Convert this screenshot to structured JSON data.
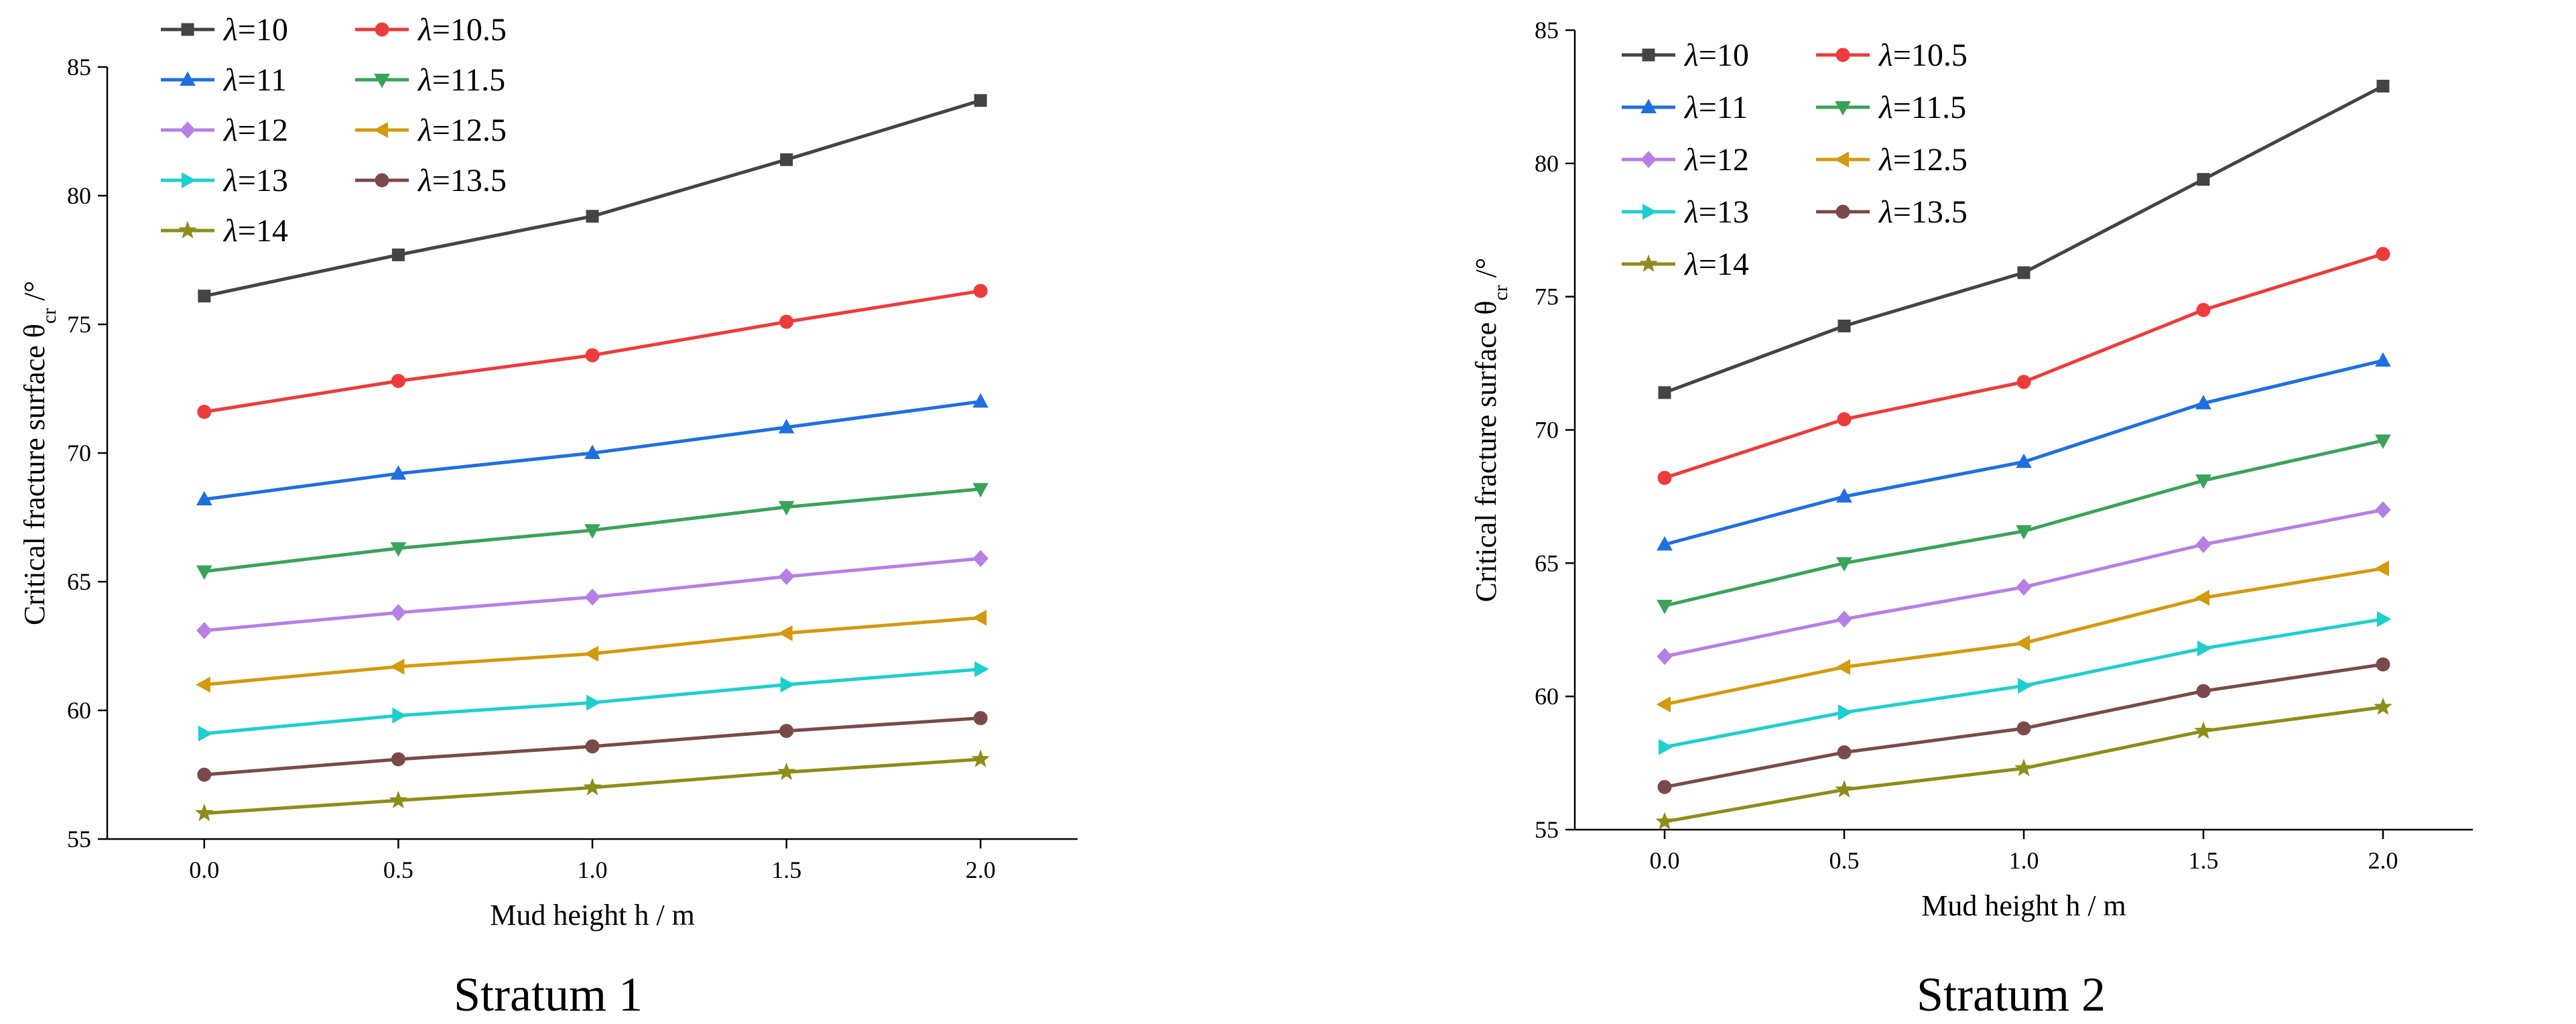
{
  "colors": {
    "lambda_10": "#444444",
    "lambda_10_5": "#ee3b3b",
    "lambda_11": "#1f6fe0",
    "lambda_11_5": "#3aa35a",
    "lambda_12": "#b77fe6",
    "lambda_12_5": "#d49a0d",
    "lambda_13": "#1ecfcf",
    "lambda_13_5": "#7a4a48",
    "lambda_14": "#8d8d1a"
  },
  "chart_data": [
    {
      "type": "line",
      "caption": "Stratum 1",
      "xlabel": "Mud height h / m",
      "ylabel": "Critical fracture surface θcr /°",
      "ylabel_main": "Critical fracture surface θ",
      "ylabel_sub": "cr",
      "ylabel_unit": " /°",
      "xlim": [
        -0.25,
        2.25
      ],
      "ylim": [
        55,
        85
      ],
      "x": [
        0.0,
        0.5,
        1.0,
        1.5,
        2.0
      ],
      "x_tick_labels": [
        "0.0",
        "0.5",
        "1.0",
        "1.5",
        "2.0"
      ],
      "y_ticks": [
        55,
        60,
        65,
        70,
        75,
        80,
        85
      ],
      "y_tick_labels": [
        "55",
        "60",
        "65",
        "70",
        "75",
        "80",
        "85"
      ],
      "series": [
        {
          "name": "λ=10",
          "lambda_symbol": "λ",
          "lambda_value": "=10",
          "marker": "square",
          "color_key": "lambda_10",
          "values": [
            76.1,
            77.7,
            79.2,
            81.4,
            83.7
          ]
        },
        {
          "name": "λ=10.5",
          "lambda_symbol": "λ",
          "lambda_value": "=10.5",
          "marker": "circle",
          "color_key": "lambda_10_5",
          "values": [
            71.6,
            72.8,
            73.8,
            75.1,
            76.3
          ]
        },
        {
          "name": "λ=11",
          "lambda_symbol": "λ",
          "lambda_value": "=11",
          "marker": "triangle-up",
          "color_key": "lambda_11",
          "values": [
            68.2,
            69.2,
            70.0,
            71.0,
            72.0
          ]
        },
        {
          "name": "λ=11.5",
          "lambda_symbol": "λ",
          "lambda_value": "=11.5",
          "marker": "triangle-down",
          "color_key": "lambda_11_5",
          "values": [
            65.4,
            66.3,
            67.0,
            67.9,
            68.6
          ]
        },
        {
          "name": "λ=12",
          "lambda_symbol": "λ",
          "lambda_value": "=12",
          "marker": "diamond",
          "color_key": "lambda_12",
          "values": [
            63.1,
            63.8,
            64.4,
            65.2,
            65.9
          ]
        },
        {
          "name": "λ=12.5",
          "lambda_symbol": "λ",
          "lambda_value": "=12.5",
          "marker": "triangle-left",
          "color_key": "lambda_12_5",
          "values": [
            61.0,
            61.7,
            62.2,
            63.0,
            63.6
          ]
        },
        {
          "name": "λ=13",
          "lambda_symbol": "λ",
          "lambda_value": "=13",
          "marker": "triangle-right",
          "color_key": "lambda_13",
          "values": [
            59.1,
            59.8,
            60.3,
            61.0,
            61.6
          ]
        },
        {
          "name": "λ=13.5",
          "lambda_symbol": "λ",
          "lambda_value": "=13.5",
          "marker": "circle",
          "color_key": "lambda_13_5",
          "values": [
            57.5,
            58.1,
            58.6,
            59.2,
            59.7
          ]
        },
        {
          "name": "λ=14",
          "lambda_symbol": "λ",
          "lambda_value": "=14",
          "marker": "star",
          "color_key": "lambda_14",
          "values": [
            56.0,
            56.5,
            57.0,
            57.6,
            58.1
          ]
        }
      ]
    },
    {
      "type": "line",
      "caption": "Stratum 2",
      "xlabel": "Mud height h / m",
      "ylabel": "Critical fracture surface θcr /°",
      "ylabel_main": "Critical fracture surface θ",
      "ylabel_sub": "cr",
      "ylabel_unit": " /°",
      "xlim": [
        -0.25,
        2.25
      ],
      "ylim": [
        55,
        85
      ],
      "x": [
        0.0,
        0.5,
        1.0,
        1.5,
        2.0
      ],
      "x_tick_labels": [
        "0.0",
        "0.5",
        "1.0",
        "1.5",
        "2.0"
      ],
      "y_ticks": [
        55,
        60,
        65,
        70,
        75,
        80,
        85
      ],
      "y_tick_labels": [
        "55",
        "60",
        "65",
        "70",
        "75",
        "80",
        "85"
      ],
      "series": [
        {
          "name": "λ=10",
          "lambda_symbol": "λ",
          "lambda_value": "=10",
          "marker": "square",
          "color_key": "lambda_10",
          "values": [
            71.4,
            73.9,
            75.9,
            79.4,
            82.9
          ]
        },
        {
          "name": "λ=10.5",
          "lambda_symbol": "λ",
          "lambda_value": "=10.5",
          "marker": "circle",
          "color_key": "lambda_10_5",
          "values": [
            68.2,
            70.4,
            71.8,
            74.5,
            76.6
          ]
        },
        {
          "name": "λ=11",
          "lambda_symbol": "λ",
          "lambda_value": "=11",
          "marker": "triangle-up",
          "color_key": "lambda_11",
          "values": [
            65.7,
            67.5,
            68.8,
            71.0,
            72.6
          ]
        },
        {
          "name": "λ=11.5",
          "lambda_symbol": "λ",
          "lambda_value": "=11.5",
          "marker": "triangle-down",
          "color_key": "lambda_11_5",
          "values": [
            63.4,
            65.0,
            66.2,
            68.1,
            69.6
          ]
        },
        {
          "name": "λ=12",
          "lambda_symbol": "λ",
          "lambda_value": "=12",
          "marker": "diamond",
          "color_key": "lambda_12",
          "values": [
            61.5,
            62.9,
            64.1,
            65.7,
            67.0
          ]
        },
        {
          "name": "λ=12.5",
          "lambda_symbol": "λ",
          "lambda_value": "=12.5",
          "marker": "triangle-left",
          "color_key": "lambda_12_5",
          "values": [
            59.7,
            61.1,
            62.0,
            63.7,
            64.8
          ]
        },
        {
          "name": "λ=13",
          "lambda_symbol": "λ",
          "lambda_value": "=13",
          "marker": "triangle-right",
          "color_key": "lambda_13",
          "values": [
            58.1,
            59.4,
            60.4,
            61.8,
            62.9
          ]
        },
        {
          "name": "λ=13.5",
          "lambda_symbol": "λ",
          "lambda_value": "=13.5",
          "marker": "circle",
          "color_key": "lambda_13_5",
          "values": [
            56.6,
            57.9,
            58.8,
            60.2,
            61.2
          ]
        },
        {
          "name": "λ=14",
          "lambda_symbol": "λ",
          "lambda_value": "=14",
          "marker": "star",
          "color_key": "lambda_14",
          "values": [
            55.3,
            56.5,
            57.3,
            58.7,
            59.6
          ]
        }
      ]
    }
  ]
}
